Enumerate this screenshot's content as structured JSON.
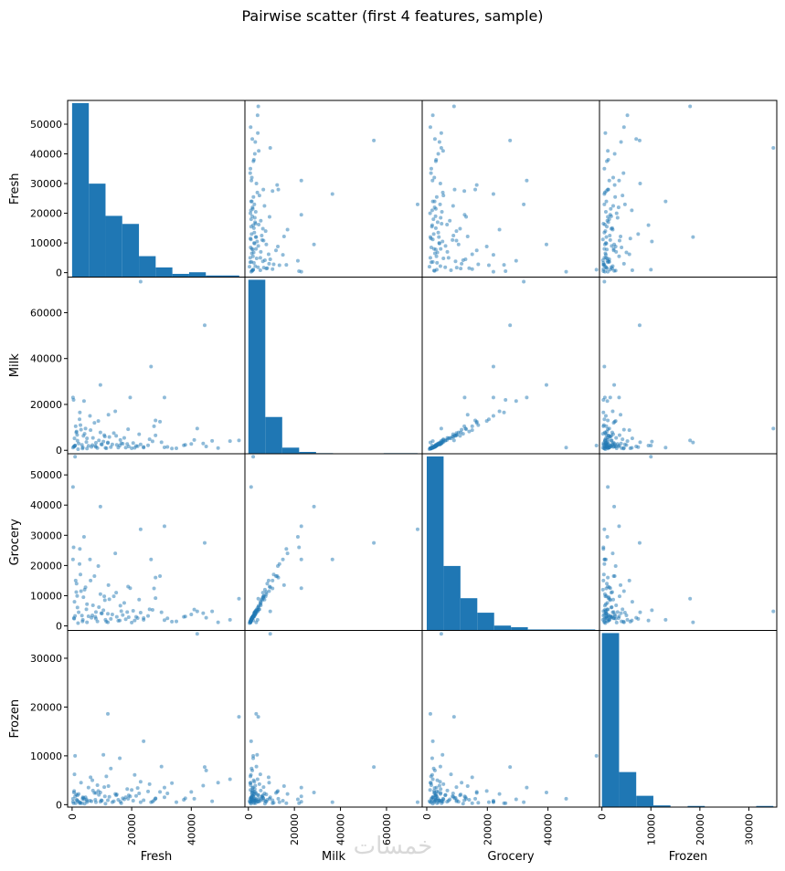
{
  "chart_data": {
    "type": "scatter",
    "title": "Pairwise scatter (first 4 features, sample)",
    "watermark": "خمسات",
    "variables": [
      "Fresh",
      "Milk",
      "Grocery",
      "Frozen"
    ],
    "ranges": {
      "Fresh": [
        -1500,
        58000
      ],
      "Milk": [
        -1500,
        75500
      ],
      "Grocery": [
        -1500,
        57000
      ],
      "Frozen": [
        -500,
        35700
      ]
    },
    "ticks": {
      "Fresh": [
        0,
        10000,
        20000,
        30000,
        40000,
        50000
      ],
      "Milk": [
        0,
        20000,
        40000,
        60000
      ],
      "Grocery": [
        0,
        10000,
        20000,
        30000,
        40000,
        50000
      ],
      "Frozen": [
        0,
        10000,
        20000,
        30000
      ]
    },
    "x_ticks": {
      "Fresh": [
        0,
        20000,
        40000
      ],
      "Milk": [
        0,
        20000,
        40000,
        60000
      ],
      "Grocery": [
        0,
        20000,
        40000
      ],
      "Frozen": [
        0,
        10000,
        20000,
        30000
      ]
    },
    "histograms": {
      "Fresh": {
        "min": 0,
        "max": 56100,
        "counts": [
          54,
          29,
          19,
          16.5,
          6.5,
          3,
          1,
          1.5,
          0.5,
          0.5
        ]
      },
      "Milk": {
        "min": 0,
        "max": 73500,
        "counts": [
          142,
          30,
          5,
          1.5,
          0.5,
          0,
          0,
          0,
          0.5,
          0.5
        ]
      },
      "Grocery": {
        "min": 0,
        "max": 55600,
        "counts": [
          54,
          20,
          10,
          5.5,
          1.5,
          1,
          0.3,
          0.3,
          0.3,
          0.3
        ]
      },
      "Frozen": {
        "min": 0,
        "max": 35000,
        "counts": [
          154,
          31,
          10,
          1.5,
          0.3,
          1,
          0,
          0,
          0,
          1
        ]
      }
    },
    "points": [
      [
        8000,
        1500,
        2400,
        500
      ],
      [
        12000,
        3200,
        4000,
        900
      ],
      [
        3500,
        800,
        1500,
        1200
      ],
      [
        15000,
        2400,
        3000,
        2100
      ],
      [
        22000,
        1800,
        2600,
        3400
      ],
      [
        5000,
        5200,
        7200,
        800
      ],
      [
        9500,
        7800,
        10500,
        600
      ],
      [
        1200,
        10500,
        15000,
        300
      ],
      [
        26000,
        4800,
        5500,
        4200
      ],
      [
        18000,
        1200,
        2200,
        1500
      ],
      [
        30000,
        3500,
        4500,
        7800
      ],
      [
        40000,
        2800,
        3800,
        2600
      ],
      [
        700,
        1600,
        2400,
        2800
      ],
      [
        2500,
        13500,
        20500,
        500
      ],
      [
        6800,
        2300,
        3500,
        5000
      ],
      [
        11000,
        6000,
        8500,
        1700
      ],
      [
        16000,
        2100,
        1800,
        9500
      ],
      [
        20000,
        900,
        1100,
        3000
      ],
      [
        24000,
        1500,
        2600,
        900
      ],
      [
        28000,
        6500,
        9200,
        1300
      ],
      [
        1800,
        4200,
        6100,
        1900
      ],
      [
        4200,
        7200,
        12000,
        200
      ],
      [
        7500,
        12000,
        16500,
        2400
      ],
      [
        3000,
        9000,
        11500,
        4500
      ],
      [
        10500,
        3800,
        5200,
        10200
      ],
      [
        13500,
        2600,
        3800,
        500
      ],
      [
        17500,
        5400,
        7600,
        1100
      ],
      [
        21000,
        1100,
        1800,
        6100
      ],
      [
        25500,
        2200,
        3300,
        2700
      ],
      [
        31000,
        1300,
        1900,
        1500
      ],
      [
        35000,
        900,
        1500,
        500
      ],
      [
        45000,
        1700,
        2700,
        7000
      ],
      [
        500,
        22000,
        26000,
        300
      ],
      [
        1500,
        8200,
        14000,
        1000
      ],
      [
        2200,
        3000,
        4500,
        2200
      ],
      [
        3800,
        6300,
        9500,
        1400
      ],
      [
        5500,
        2000,
        3200,
        3500
      ],
      [
        6000,
        15000,
        22000,
        800
      ],
      [
        8500,
        1000,
        1500,
        4000
      ],
      [
        9000,
        4300,
        6200,
        2000
      ],
      [
        10000,
        2500,
        4100,
        800
      ],
      [
        11500,
        900,
        1400,
        5800
      ],
      [
        12500,
        5800,
        8800,
        1600
      ],
      [
        14000,
        7500,
        9800,
        700
      ],
      [
        16500,
        3100,
        4900,
        300
      ],
      [
        19000,
        1700,
        2900,
        1900
      ],
      [
        23000,
        2600,
        4400,
        4700
      ],
      [
        27000,
        3900,
        5300,
        600
      ],
      [
        32000,
        1500,
        2500,
        2300
      ],
      [
        38000,
        2400,
        3100,
        1300
      ],
      [
        44000,
        3000,
        4200,
        3900
      ],
      [
        800,
        5200,
        8000,
        6200
      ],
      [
        1000,
        2100,
        3300,
        1700
      ],
      [
        2800,
        11000,
        17000,
        400
      ],
      [
        4800,
        3600,
        5500,
        1100
      ],
      [
        7000,
        5400,
        6800,
        2900
      ],
      [
        15500,
        1200,
        1700,
        1000
      ],
      [
        18500,
        2800,
        4600,
        3200
      ],
      [
        21500,
        1900,
        3000,
        1800
      ],
      [
        29500,
        12500,
        16500,
        2600
      ],
      [
        33500,
        800,
        1400,
        4400
      ],
      [
        41000,
        4500,
        5400,
        1200
      ],
      [
        47000,
        4100,
        4800,
        700
      ],
      [
        600,
        1700,
        2600,
        2500
      ],
      [
        1700,
        6700,
        9900,
        900
      ],
      [
        3300,
        2400,
        3400,
        300
      ],
      [
        4500,
        9500,
        12800,
        1500
      ],
      [
        6500,
        1500,
        2700,
        700
      ],
      [
        8000,
        3300,
        4600,
        2400
      ],
      [
        10800,
        6600,
        9800,
        3600
      ],
      [
        13000,
        1400,
        2300,
        7400
      ],
      [
        17000,
        2900,
        3600,
        1300
      ],
      [
        26500,
        36500,
        22000,
        500
      ],
      [
        44500,
        54500,
        27500,
        7700
      ],
      [
        23000,
        73500,
        32000,
        500
      ],
      [
        9500,
        28500,
        39500,
        2500
      ],
      [
        31000,
        23000,
        33000,
        3500
      ],
      [
        300,
        1200,
        46000,
        1200
      ],
      [
        1000,
        2100,
        56000,
        10000
      ],
      [
        12000,
        3400,
        1200,
        18600
      ],
      [
        24000,
        1200,
        2000,
        13000
      ],
      [
        56000,
        4300,
        9000,
        18000
      ],
      [
        42000,
        9500,
        4800,
        35000
      ],
      [
        300,
        23000,
        22000,
        600
      ],
      [
        49000,
        1000,
        1200,
        4500
      ],
      [
        28000,
        13000,
        16000,
        1200
      ],
      [
        14500,
        17000,
        24000,
        2200
      ],
      [
        19500,
        23000,
        12500,
        1700
      ],
      [
        5000,
        800,
        1200,
        500
      ],
      [
        7800,
        1900,
        3000,
        1000
      ],
      [
        11200,
        1100,
        2000,
        200
      ],
      [
        2000,
        500,
        900,
        700
      ],
      [
        3600,
        1300,
        2000,
        1500
      ],
      [
        9800,
        2700,
        4200,
        900
      ],
      [
        16200,
        4500,
        6700,
        600
      ],
      [
        20500,
        3200,
        5000,
        800
      ],
      [
        1400,
        7800,
        11200,
        2100
      ],
      [
        2600,
        16500,
        25500,
        300
      ],
      [
        4000,
        21500,
        29500,
        1100
      ],
      [
        6200,
        8800,
        15000,
        5600
      ],
      [
        8800,
        12800,
        19800,
        2800
      ],
      [
        12200,
        15500,
        13500,
        3800
      ],
      [
        14800,
        6300,
        11000,
        1900
      ],
      [
        18800,
        9200,
        13000,
        1200
      ],
      [
        22500,
        7000,
        8700,
        2300
      ],
      [
        27500,
        10500,
        12400,
        900
      ],
      [
        37500,
        2200,
        3000,
        1000
      ],
      [
        53000,
        4000,
        2000,
        5200
      ]
    ]
  }
}
